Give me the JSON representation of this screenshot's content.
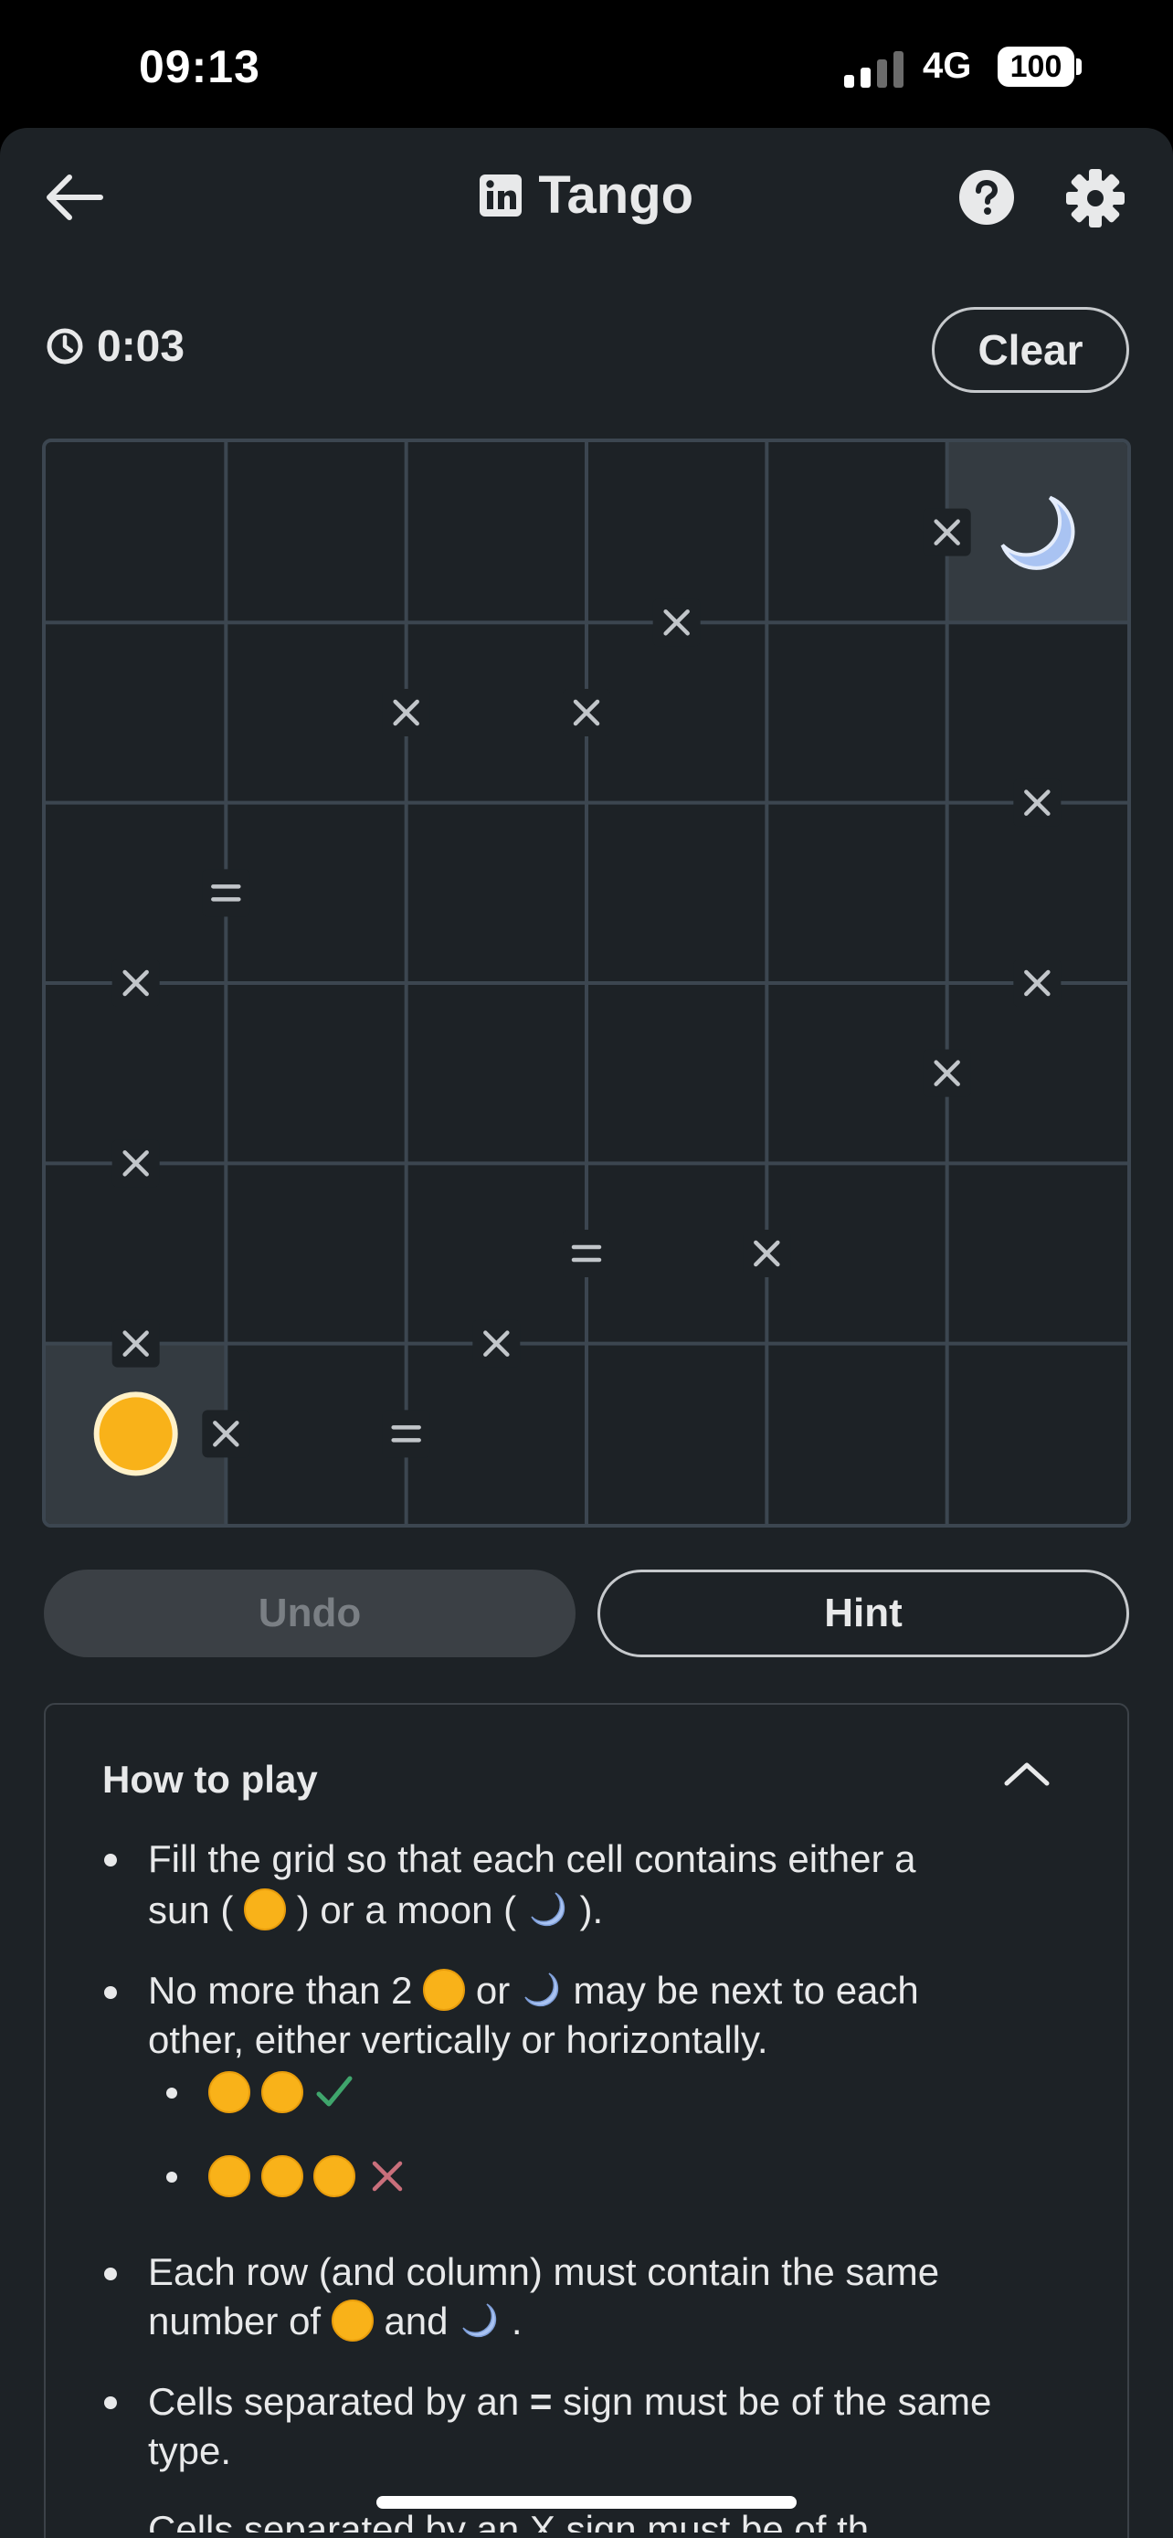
{
  "status_bar": {
    "time": "09:13",
    "network": "4G",
    "battery": "100"
  },
  "header": {
    "title": "Tango",
    "icons": {
      "back": "arrow-left-icon",
      "brand": "linkedin-icon",
      "help": "help-circle-icon",
      "settings": "gear-icon"
    }
  },
  "timer": {
    "value": "0:03",
    "icon": "clock-icon"
  },
  "clear_button": {
    "label": "Clear"
  },
  "board": {
    "rows": 6,
    "cols": 6,
    "cells": [
      [
        "",
        "",
        "",
        "",
        "",
        "moon"
      ],
      [
        "",
        "",
        "",
        "",
        "",
        ""
      ],
      [
        "",
        "",
        "",
        "",
        "",
        ""
      ],
      [
        "",
        "",
        "",
        "",
        "",
        ""
      ],
      [
        "",
        "",
        "",
        "",
        "",
        ""
      ],
      [
        "sun",
        "",
        "",
        "",
        "",
        ""
      ]
    ],
    "prefilled": [
      [
        0,
        5
      ],
      [
        5,
        0
      ]
    ],
    "constraints": [
      {
        "type": "x",
        "between": [
          [
            0,
            4
          ],
          [
            0,
            5
          ]
        ]
      },
      {
        "type": "x",
        "between": [
          [
            0,
            3
          ],
          [
            1,
            3
          ]
        ]
      },
      {
        "type": "x",
        "between": [
          [
            1,
            1
          ],
          [
            1,
            2
          ]
        ]
      },
      {
        "type": "x",
        "between": [
          [
            1,
            2
          ],
          [
            1,
            3
          ]
        ]
      },
      {
        "type": "x",
        "between": [
          [
            1,
            5
          ],
          [
            2,
            5
          ]
        ]
      },
      {
        "type": "=",
        "between": [
          [
            2,
            0
          ],
          [
            2,
            1
          ]
        ]
      },
      {
        "type": "x",
        "between": [
          [
            2,
            0
          ],
          [
            3,
            0
          ]
        ]
      },
      {
        "type": "x",
        "between": [
          [
            2,
            5
          ],
          [
            3,
            5
          ]
        ]
      },
      {
        "type": "x",
        "between": [
          [
            3,
            4
          ],
          [
            3,
            5
          ]
        ]
      },
      {
        "type": "x",
        "between": [
          [
            3,
            0
          ],
          [
            4,
            0
          ]
        ]
      },
      {
        "type": "=",
        "between": [
          [
            4,
            2
          ],
          [
            4,
            3
          ]
        ]
      },
      {
        "type": "x",
        "between": [
          [
            4,
            3
          ],
          [
            4,
            4
          ]
        ]
      },
      {
        "type": "x",
        "between": [
          [
            4,
            0
          ],
          [
            5,
            0
          ]
        ]
      },
      {
        "type": "x",
        "between": [
          [
            4,
            2
          ],
          [
            5,
            2
          ]
        ]
      },
      {
        "type": "x",
        "between": [
          [
            5,
            0
          ],
          [
            5,
            1
          ]
        ]
      },
      {
        "type": "=",
        "between": [
          [
            5,
            1
          ],
          [
            5,
            2
          ]
        ]
      }
    ],
    "colors": {
      "grid_line": "#3c4650",
      "prefilled_bg": "#343b41",
      "sun": "#f9b219",
      "moon": "#a9c3f2",
      "mark": "#c2c6ca"
    }
  },
  "actions": {
    "undo_label": "Undo",
    "hint_label": "Hint"
  },
  "how_to_play": {
    "title": "How to play",
    "collapse_icon": "chevron-up-icon",
    "rule1_a": "Fill the grid so that each cell contains either a",
    "rule1_b1": "sun (",
    "rule1_b2": ") or a moon (",
    "rule1_b3": ").",
    "rule2_a1": "No more than 2",
    "rule2_a2": "or",
    "rule2_a3": "may be next to each",
    "rule2_b": "other, either vertically or horizontally.",
    "rule3_a": "Each row (and column) must contain the same",
    "rule3_b1": "number of",
    "rule3_b2": "and",
    "rule3_b3": ".",
    "rule4_a1": "Cells separated by an",
    "rule4_sym": "=",
    "rule4_a2": "sign must be of the same",
    "rule4_b": "type.",
    "rule5_partial": "Cells separated by an X sign must be of th",
    "example_valid_icon": "check-icon",
    "example_invalid_icon": "cross-icon",
    "colors": {
      "valid": "#3fa56c",
      "invalid": "#c96f7b"
    }
  }
}
